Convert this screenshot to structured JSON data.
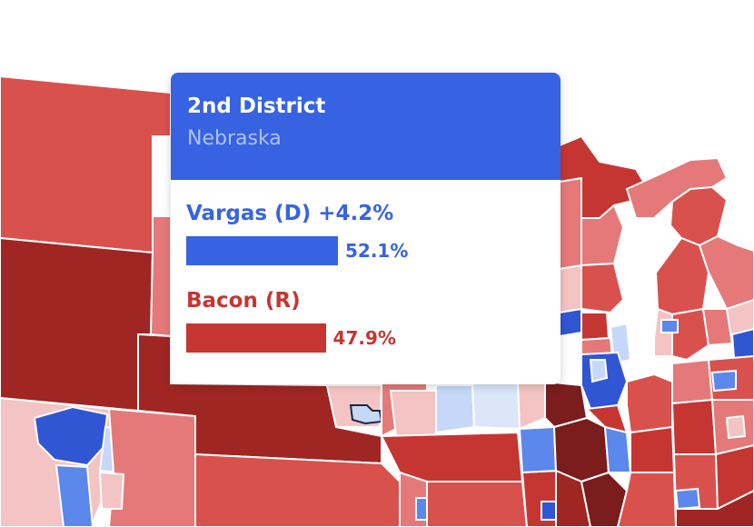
{
  "tooltip": {
    "title": "2nd District",
    "subtitle": "Nebraska",
    "candidates": [
      {
        "label": "Vargas (D) +4.2%",
        "share": 52.1,
        "pct_label": "52.1%",
        "party": "dem"
      },
      {
        "label": "Bacon (R)",
        "share": 47.9,
        "pct_label": "47.9%",
        "party": "rep"
      }
    ]
  },
  "colors": {
    "dem_strong": "#3056d3",
    "dem_medium": "#5b88ea",
    "dem_light": "#c6d8f7",
    "rep_light": "#f3c4c3",
    "rep_lean": "#e5797a",
    "rep_medium": "#d9514d",
    "rep_strong": "#c53632",
    "rep_safe": "#9f2622",
    "rep_deep": "#7a1d1c",
    "lake": "#ffffff"
  }
}
